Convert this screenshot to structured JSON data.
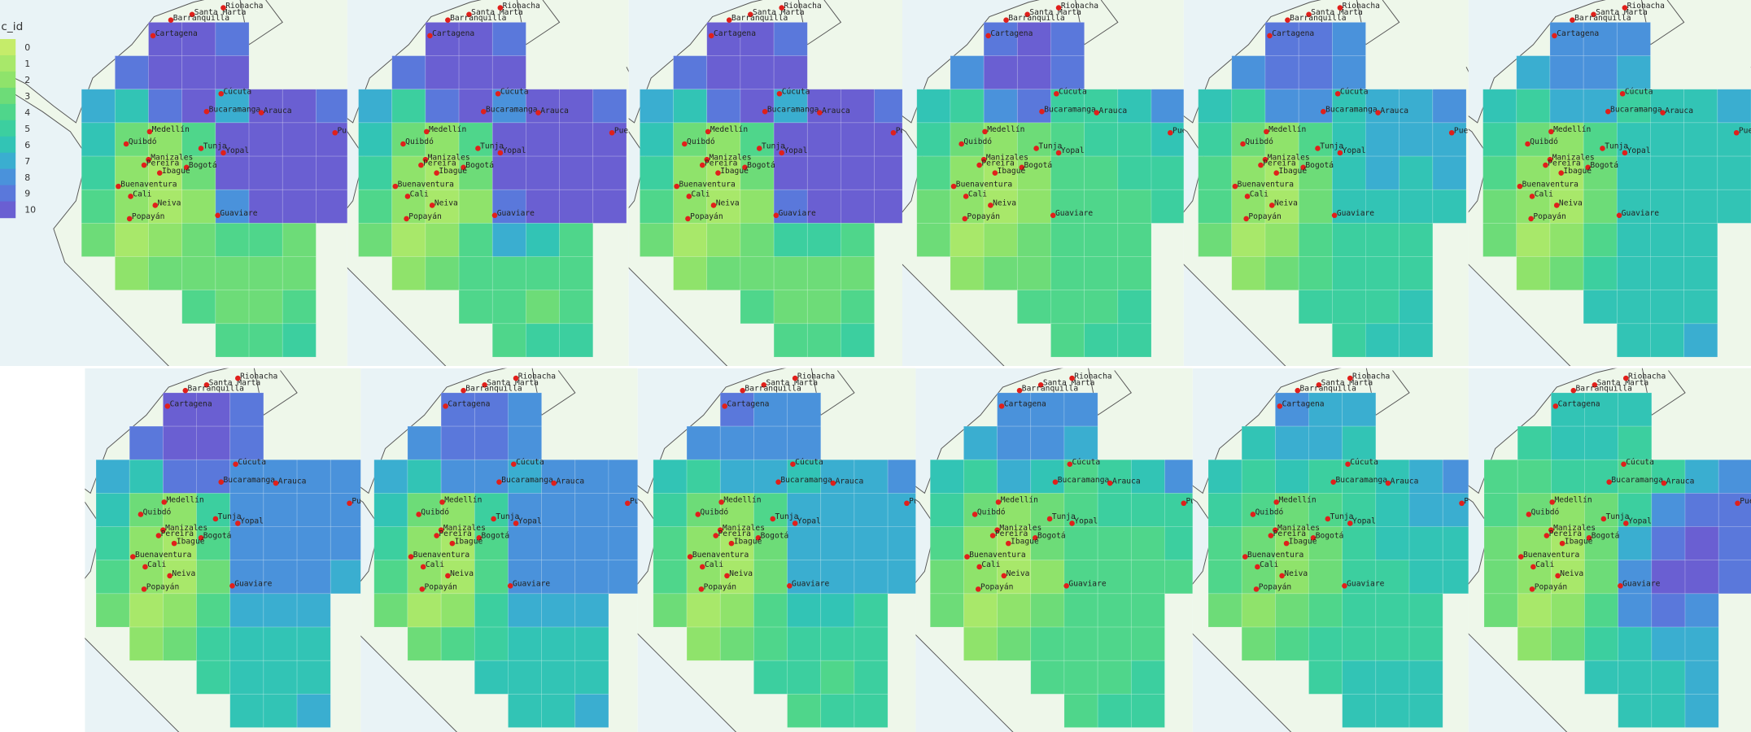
{
  "legend": {
    "title": "c_id",
    "ticks": [
      0,
      1,
      2,
      3,
      4,
      5,
      6,
      7,
      8,
      9,
      10
    ],
    "colorscale": [
      "#c5ec6a",
      "#a8e86a",
      "#8fe36b",
      "#6ddc78",
      "#4fd68b",
      "#3ccf9f",
      "#32c4b5",
      "#3aaed0",
      "#4a92db",
      "#5a78db",
      "#6a5fd2"
    ]
  },
  "cities": [
    "Santa Marta",
    "Riohacha",
    "Barranquilla",
    "Cartagena",
    "Cúcuta",
    "Bucaramanga",
    "Arauca",
    "Medellín",
    "Quibdó",
    "Tunja",
    "Yopal",
    "Manizales",
    "Pereira",
    "Bogotá",
    "Ibagué",
    "Buenaventura",
    "Cali",
    "Neiva",
    "Popayán",
    "Guaviare",
    "Puerto Carreño"
  ],
  "panels": [
    {
      "grid": [
        [
          null,
          null,
          10,
          10,
          9,
          null,
          null,
          null
        ],
        [
          null,
          9,
          10,
          10,
          10,
          null,
          null,
          null
        ],
        [
          7,
          6,
          9,
          10,
          7,
          10,
          10,
          9
        ],
        [
          6,
          3,
          2,
          4,
          10,
          10,
          10,
          10
        ],
        [
          5,
          2,
          1,
          3,
          10,
          10,
          10,
          10
        ],
        [
          4,
          2,
          1,
          2,
          8,
          10,
          10,
          10
        ],
        [
          3,
          1,
          2,
          3,
          4,
          4,
          3,
          null
        ],
        [
          null,
          2,
          3,
          3,
          3,
          3,
          3,
          null
        ],
        [
          null,
          null,
          null,
          4,
          3,
          3,
          4,
          null
        ],
        [
          null,
          null,
          null,
          null,
          4,
          4,
          5,
          null
        ]
      ]
    },
    {
      "grid": [
        [
          null,
          null,
          10,
          10,
          9,
          null,
          null,
          null
        ],
        [
          null,
          9,
          10,
          10,
          10,
          null,
          null,
          null
        ],
        [
          7,
          5,
          9,
          10,
          8,
          10,
          10,
          9
        ],
        [
          6,
          3,
          2,
          4,
          10,
          10,
          10,
          10
        ],
        [
          5,
          2,
          1,
          3,
          10,
          10,
          10,
          10
        ],
        [
          4,
          2,
          1,
          2,
          9,
          10,
          10,
          10
        ],
        [
          3,
          1,
          2,
          4,
          7,
          6,
          4,
          null
        ],
        [
          null,
          2,
          3,
          4,
          4,
          4,
          4,
          null
        ],
        [
          null,
          null,
          null,
          4,
          4,
          3,
          4,
          null
        ],
        [
          null,
          null,
          null,
          null,
          4,
          5,
          5,
          null
        ]
      ]
    },
    {
      "grid": [
        [
          null,
          null,
          10,
          10,
          9,
          null,
          null,
          null
        ],
        [
          null,
          9,
          10,
          10,
          10,
          null,
          null,
          null
        ],
        [
          7,
          6,
          9,
          10,
          7,
          10,
          10,
          9
        ],
        [
          6,
          3,
          2,
          4,
          10,
          10,
          10,
          10
        ],
        [
          5,
          2,
          1,
          3,
          10,
          10,
          10,
          10
        ],
        [
          4,
          2,
          1,
          2,
          9,
          10,
          10,
          10
        ],
        [
          3,
          1,
          2,
          3,
          5,
          5,
          4,
          null
        ],
        [
          null,
          2,
          3,
          3,
          3,
          3,
          3,
          null
        ],
        [
          null,
          null,
          null,
          4,
          3,
          3,
          4,
          null
        ],
        [
          null,
          null,
          null,
          null,
          4,
          4,
          5,
          null
        ]
      ]
    },
    {
      "grid": [
        [
          null,
          null,
          9,
          10,
          9,
          null,
          null,
          null
        ],
        [
          null,
          8,
          10,
          10,
          9,
          null,
          null,
          null
        ],
        [
          6,
          5,
          8,
          9,
          5,
          5,
          6,
          8
        ],
        [
          5,
          3,
          2,
          3,
          4,
          5,
          5,
          6
        ],
        [
          4,
          2,
          1,
          2,
          4,
          4,
          5,
          5
        ],
        [
          3,
          2,
          1,
          2,
          4,
          4,
          4,
          5
        ],
        [
          3,
          1,
          2,
          3,
          4,
          4,
          4,
          null
        ],
        [
          null,
          2,
          3,
          3,
          4,
          4,
          4,
          null
        ],
        [
          null,
          null,
          null,
          4,
          4,
          4,
          5,
          null
        ],
        [
          null,
          null,
          null,
          null,
          4,
          5,
          5,
          null
        ]
      ]
    },
    {
      "grid": [
        [
          null,
          null,
          9,
          9,
          8,
          null,
          null,
          null
        ],
        [
          null,
          8,
          9,
          9,
          8,
          null,
          null,
          null
        ],
        [
          6,
          5,
          8,
          8,
          6,
          7,
          7,
          8
        ],
        [
          5,
          3,
          2,
          4,
          6,
          7,
          7,
          7
        ],
        [
          4,
          2,
          1,
          3,
          6,
          7,
          6,
          7
        ],
        [
          4,
          2,
          1,
          3,
          6,
          6,
          6,
          6
        ],
        [
          3,
          1,
          2,
          4,
          5,
          5,
          5,
          null
        ],
        [
          null,
          2,
          3,
          4,
          5,
          5,
          5,
          null
        ],
        [
          null,
          null,
          null,
          5,
          5,
          5,
          6,
          null
        ],
        [
          null,
          null,
          null,
          null,
          5,
          6,
          6,
          null
        ]
      ]
    },
    {
      "grid": [
        [
          null,
          null,
          8,
          8,
          8,
          null,
          null,
          null
        ],
        [
          null,
          7,
          8,
          8,
          7,
          null,
          null,
          null
        ],
        [
          6,
          5,
          7,
          7,
          5,
          6,
          6,
          7
        ],
        [
          5,
          3,
          2,
          4,
          6,
          6,
          6,
          6
        ],
        [
          4,
          2,
          1,
          3,
          6,
          6,
          6,
          6
        ],
        [
          3,
          2,
          1,
          3,
          6,
          6,
          6,
          6
        ],
        [
          3,
          1,
          2,
          4,
          6,
          6,
          6,
          null
        ],
        [
          null,
          2,
          3,
          5,
          6,
          6,
          6,
          null
        ],
        [
          null,
          null,
          null,
          6,
          6,
          6,
          6,
          null
        ],
        [
          null,
          null,
          null,
          null,
          6,
          6,
          7,
          null
        ]
      ]
    },
    {
      "grid": [
        [
          null,
          null,
          10,
          10,
          9,
          null,
          null,
          null
        ],
        [
          null,
          9,
          10,
          10,
          9,
          null,
          null,
          null
        ],
        [
          7,
          6,
          9,
          9,
          8,
          8,
          8,
          8
        ],
        [
          6,
          3,
          2,
          5,
          8,
          8,
          8,
          8
        ],
        [
          5,
          2,
          1,
          4,
          8,
          8,
          8,
          8
        ],
        [
          4,
          2,
          1,
          3,
          8,
          8,
          8,
          7
        ],
        [
          3,
          1,
          2,
          4,
          7,
          7,
          7,
          null
        ],
        [
          null,
          2,
          3,
          5,
          6,
          6,
          6,
          null
        ],
        [
          null,
          null,
          null,
          5,
          6,
          6,
          6,
          null
        ],
        [
          null,
          null,
          null,
          null,
          6,
          6,
          7,
          null
        ]
      ]
    },
    {
      "grid": [
        [
          null,
          null,
          9,
          9,
          8,
          null,
          null,
          null
        ],
        [
          null,
          8,
          9,
          9,
          8,
          null,
          null,
          null
        ],
        [
          7,
          6,
          8,
          8,
          7,
          8,
          8,
          8
        ],
        [
          6,
          3,
          2,
          5,
          8,
          8,
          8,
          8
        ],
        [
          5,
          2,
          1,
          4,
          8,
          8,
          8,
          8
        ],
        [
          4,
          2,
          1,
          4,
          8,
          8,
          8,
          8
        ],
        [
          3,
          1,
          2,
          5,
          7,
          7,
          7,
          null
        ],
        [
          null,
          3,
          4,
          5,
          6,
          6,
          6,
          null
        ],
        [
          null,
          null,
          null,
          6,
          6,
          6,
          6,
          null
        ],
        [
          null,
          null,
          null,
          null,
          6,
          6,
          7,
          null
        ]
      ]
    },
    {
      "grid": [
        [
          null,
          null,
          9,
          8,
          8,
          null,
          null,
          null
        ],
        [
          null,
          8,
          8,
          8,
          8,
          null,
          null,
          null
        ],
        [
          6,
          5,
          7,
          7,
          6,
          7,
          7,
          8
        ],
        [
          5,
          3,
          2,
          4,
          7,
          7,
          7,
          7
        ],
        [
          4,
          2,
          1,
          3,
          7,
          7,
          7,
          7
        ],
        [
          4,
          2,
          1,
          3,
          7,
          7,
          7,
          7
        ],
        [
          3,
          1,
          2,
          4,
          6,
          6,
          5,
          null
        ],
        [
          null,
          2,
          3,
          4,
          5,
          5,
          5,
          null
        ],
        [
          null,
          null,
          null,
          5,
          5,
          4,
          5,
          null
        ],
        [
          null,
          null,
          null,
          null,
          4,
          5,
          5,
          null
        ]
      ]
    },
    {
      "grid": [
        [
          null,
          null,
          8,
          8,
          8,
          null,
          null,
          null
        ],
        [
          null,
          7,
          8,
          8,
          7,
          null,
          null,
          null
        ],
        [
          6,
          5,
          7,
          6,
          4,
          5,
          6,
          8
        ],
        [
          5,
          3,
          2,
          3,
          4,
          5,
          5,
          5
        ],
        [
          4,
          2,
          1,
          3,
          4,
          4,
          4,
          5
        ],
        [
          3,
          2,
          1,
          2,
          4,
          4,
          4,
          4
        ],
        [
          3,
          1,
          2,
          3,
          4,
          4,
          4,
          null
        ],
        [
          null,
          2,
          3,
          4,
          4,
          4,
          4,
          null
        ],
        [
          null,
          null,
          null,
          4,
          4,
          4,
          5,
          null
        ],
        [
          null,
          null,
          null,
          null,
          4,
          5,
          5,
          null
        ]
      ]
    },
    {
      "grid": [
        [
          null,
          null,
          8,
          7,
          7,
          null,
          null,
          null
        ],
        [
          null,
          6,
          7,
          7,
          6,
          null,
          null,
          null
        ],
        [
          6,
          5,
          6,
          5,
          5,
          6,
          7,
          8
        ],
        [
          5,
          4,
          3,
          4,
          5,
          6,
          7,
          7
        ],
        [
          4,
          3,
          2,
          3,
          5,
          6,
          6,
          6
        ],
        [
          4,
          3,
          2,
          3,
          5,
          5,
          6,
          6
        ],
        [
          3,
          2,
          3,
          4,
          5,
          5,
          5,
          null
        ],
        [
          null,
          3,
          4,
          5,
          5,
          5,
          5,
          null
        ],
        [
          null,
          null,
          null,
          5,
          6,
          6,
          6,
          null
        ],
        [
          null,
          null,
          null,
          null,
          6,
          6,
          6,
          null
        ]
      ]
    },
    {
      "grid": [
        [
          null,
          null,
          6,
          6,
          6,
          null,
          null,
          null
        ],
        [
          null,
          5,
          6,
          6,
          5,
          null,
          null,
          null
        ],
        [
          4,
          4,
          5,
          5,
          4,
          5,
          7,
          8
        ],
        [
          4,
          3,
          2,
          3,
          5,
          8,
          9,
          9
        ],
        [
          3,
          2,
          1,
          3,
          7,
          9,
          10,
          9
        ],
        [
          3,
          2,
          1,
          3,
          8,
          10,
          10,
          9
        ],
        [
          3,
          1,
          2,
          4,
          8,
          9,
          8,
          null
        ],
        [
          null,
          2,
          3,
          5,
          6,
          7,
          7,
          null
        ],
        [
          null,
          null,
          null,
          6,
          6,
          6,
          7,
          null
        ],
        [
          null,
          null,
          null,
          null,
          6,
          6,
          7,
          null
        ]
      ]
    }
  ]
}
